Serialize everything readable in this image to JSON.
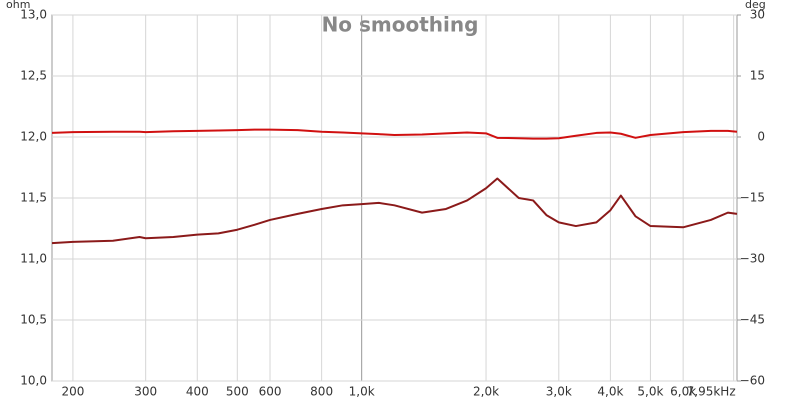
{
  "chart_data": {
    "type": "line",
    "title": "No smoothing",
    "y_label": "ohm",
    "y2_label": "deg",
    "x": [
      178,
      200,
      250,
      290,
      300,
      350,
      400,
      450,
      500,
      550,
      600,
      700,
      800,
      900,
      1000,
      1100,
      1200,
      1400,
      1600,
      1800,
      2000,
      2130,
      2400,
      2600,
      2800,
      3000,
      3300,
      3700,
      4000,
      4240,
      4600,
      5000,
      6000,
      7000,
      7700,
      8100
    ],
    "series": [
      {
        "color": "#8b1a1a",
        "axis": "y",
        "values": [
          11.13,
          11.14,
          11.15,
          11.18,
          11.17,
          11.18,
          11.2,
          11.21,
          11.24,
          11.28,
          11.32,
          11.37,
          11.41,
          11.44,
          11.45,
          11.46,
          11.44,
          11.38,
          11.41,
          11.48,
          11.58,
          11.66,
          11.5,
          11.48,
          11.36,
          11.3,
          11.27,
          11.3,
          11.4,
          11.52,
          11.35,
          11.27,
          11.26,
          11.32,
          11.38,
          11.37
        ]
      },
      {
        "color": "#d01010",
        "axis": "y2",
        "values": [
          1.0,
          1.2,
          1.3,
          1.3,
          1.2,
          1.4,
          1.5,
          1.6,
          1.7,
          1.8,
          1.8,
          1.7,
          1.3,
          1.1,
          0.9,
          0.7,
          0.5,
          0.6,
          0.9,
          1.1,
          0.9,
          -0.2,
          -0.3,
          -0.4,
          -0.4,
          -0.3,
          0.3,
          1.0,
          1.1,
          0.8,
          -0.2,
          0.5,
          1.2,
          1.5,
          1.5,
          1.3
        ]
      }
    ],
    "x_log": true,
    "xlim": [
      178,
      8100
    ],
    "xticks": [
      200,
      300,
      400,
      500,
      600,
      800,
      {
        "value": 1000,
        "label": "1,0k"
      },
      {
        "value": 2000,
        "label": "2,0k"
      },
      {
        "value": 3000,
        "label": "3,0k"
      },
      {
        "value": 4000,
        "label": "4,0k"
      },
      {
        "value": 5000,
        "label": "5,0k"
      },
      {
        "value": 6000,
        "label": "6,0k"
      },
      {
        "value": 7950,
        "label": "7,95kHz"
      }
    ],
    "ylim": [
      10,
      13
    ],
    "yticks": [
      {
        "value": 10,
        "label": "10,0"
      },
      {
        "value": 10.5,
        "label": "10,5"
      },
      {
        "value": 11,
        "label": "11,0"
      },
      {
        "value": 11.5,
        "label": "11,5"
      },
      {
        "value": 12,
        "label": "12,0"
      },
      {
        "value": 12.5,
        "label": "12,5"
      },
      {
        "value": 13,
        "label": "13,0"
      }
    ],
    "y2lim": [
      -60,
      30
    ],
    "y2ticks": [
      {
        "value": -60,
        "label": "−60"
      },
      {
        "value": -45,
        "label": "−45"
      },
      {
        "value": -30,
        "label": "−30"
      },
      {
        "value": -15,
        "label": "−15"
      },
      0,
      15,
      30
    ],
    "grid": true
  }
}
